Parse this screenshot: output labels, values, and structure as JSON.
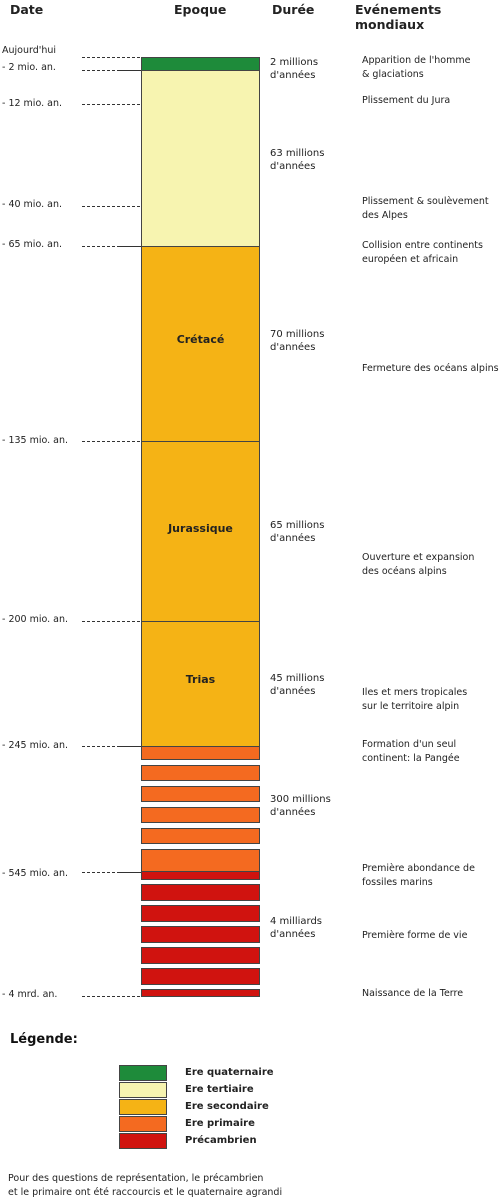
{
  "headers": {
    "date": "Date",
    "epoch": "Epoque",
    "duration": "Durée",
    "events": "Evénements mondiaux"
  },
  "colors": {
    "quaternary": "#1e8b3a",
    "tertiary": "#f7f4b0",
    "secondary": "#f5b315",
    "primary": "#f46a20",
    "precambrian": "#d0130f"
  },
  "dates": [
    "Aujourd'hui",
    "- 2 mio. an.",
    "- 12 mio. an.",
    "- 40 mio. an.",
    "- 65 mio. an.",
    "- 135 mio. an.",
    "- 200 mio. an.",
    "- 245 mio. an.",
    "- 545 mio. an.",
    "- 4 mrd. an."
  ],
  "epochs": [
    "Crétacé",
    "Jurassique",
    "Trias"
  ],
  "durations": [
    [
      "2 millions",
      "d'années"
    ],
    [
      "63 millions",
      "d'années"
    ],
    [
      "70 millions",
      "d'années"
    ],
    [
      "65 millions",
      "d'années"
    ],
    [
      "45 millions",
      "d'années"
    ],
    [
      "300 millions",
      "d'années"
    ],
    [
      "4 milliards",
      "d'années"
    ]
  ],
  "events": [
    [
      "Apparition de l'homme",
      " & glaciations"
    ],
    [
      "Plissement du Jura"
    ],
    [
      "Plissement & soulèvement",
      "des Alpes"
    ],
    [
      "Collision entre continents",
      "européen et africain"
    ],
    [
      "Fermeture des océans alpins"
    ],
    [
      "Ouverture et expansion",
      "des océans alpins"
    ],
    [
      "Iles et mers tropicales",
      "sur le territoire alpin"
    ],
    [
      "Formation d'un seul",
      "continent: la Pangée"
    ],
    [
      "Première abondance de",
      "fossiles marins"
    ],
    [
      "Première forme de vie"
    ],
    [
      "Naissance de la Terre"
    ]
  ],
  "legend": {
    "title": "Légende:",
    "items": [
      "Ere quaternaire",
      "Ere tertiaire",
      "Ere secondaire",
      "Ere primaire",
      "Précambrien"
    ]
  },
  "note": [
    "Pour des questions de représentation, le précambrien",
    "et le primaire ont été raccourcis et le quaternaire agrandi"
  ]
}
